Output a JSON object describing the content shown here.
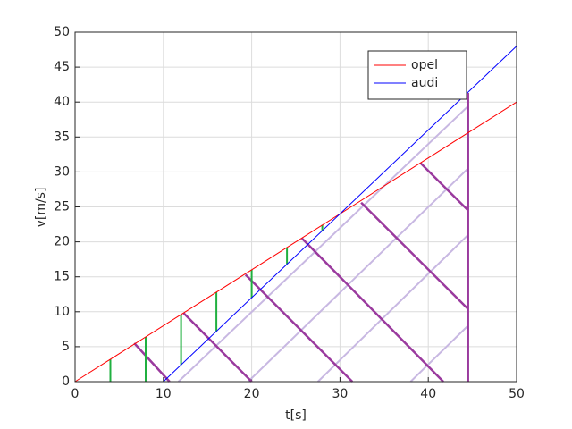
{
  "chart_data": {
    "type": "line",
    "xlabel": "t[s]",
    "ylabel": "v[m/s]",
    "xlim": [
      0,
      50
    ],
    "ylim": [
      0,
      50
    ],
    "xticks": [
      0,
      10,
      20,
      30,
      40,
      50
    ],
    "yticks": [
      0,
      5,
      10,
      15,
      20,
      25,
      30,
      35,
      40,
      45,
      50
    ],
    "grid": true,
    "legend_position": "upper-right",
    "series": [
      {
        "name": "opel",
        "color": "#ff0000",
        "x": [
          0,
          50
        ],
        "values": [
          0,
          40
        ]
      },
      {
        "name": "audi",
        "color": "#0000ff",
        "x": [
          10,
          50
        ],
        "values": [
          0,
          48
        ]
      }
    ],
    "segments": [
      {
        "color": "#c8b8e2",
        "width": 2,
        "x": [
          11.7,
          44.5,
          null,
          19.6,
          44.5,
          null,
          27.5,
          44.5,
          null,
          38,
          44.5
        ],
        "values": [
          0,
          39.4,
          null,
          0,
          30.5,
          null,
          0,
          21,
          null,
          0,
          8
        ]
      },
      {
        "color": "#9a3a9e",
        "width": 2.5,
        "x": [
          6.7,
          10.7,
          null,
          12.3,
          20,
          null,
          19.3,
          31.4,
          null,
          25.7,
          41.7,
          null,
          32.4,
          44.5,
          null,
          39.1,
          44.5,
          null,
          44.5,
          44.5
        ],
        "values": [
          5.5,
          0,
          null,
          9.8,
          0,
          null,
          15.3,
          0,
          null,
          20.5,
          0,
          null,
          25.6,
          10.4,
          null,
          31.3,
          24.5,
          null,
          0,
          41.3
        ]
      },
      {
        "color": "#20b040",
        "width": 2,
        "x": [
          4,
          4,
          null,
          8,
          8,
          null,
          12,
          12,
          null,
          16,
          16,
          null,
          20,
          20,
          null,
          24,
          24,
          null,
          28,
          28
        ],
        "values": [
          0,
          3.2,
          null,
          0,
          6.4,
          null,
          2.4,
          9.6,
          null,
          7.2,
          12.8,
          null,
          12,
          16,
          null,
          16.8,
          19.2,
          null,
          21.6,
          22.4
        ]
      }
    ]
  }
}
